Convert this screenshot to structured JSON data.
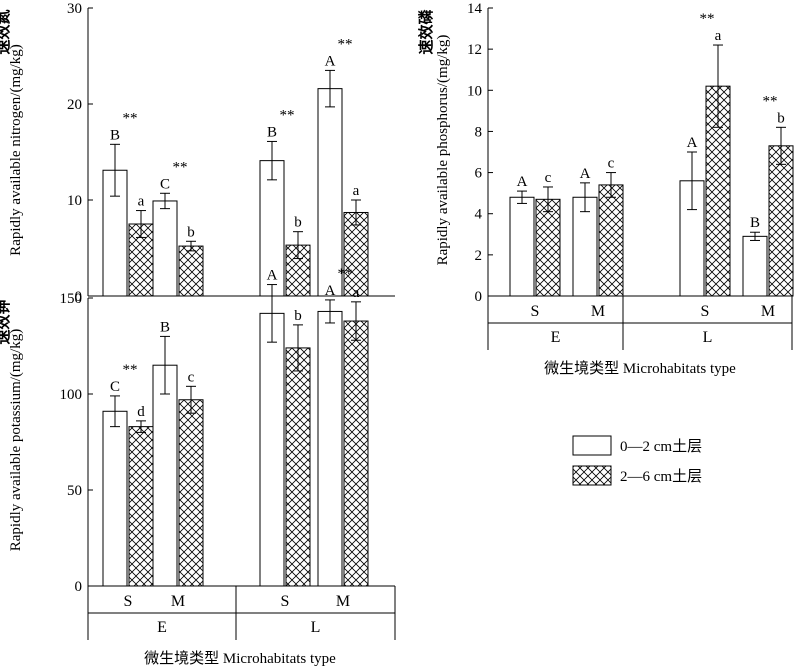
{
  "chart_data": [
    {
      "id": "nitrogen",
      "type": "bar",
      "ylabel_cn": "速效氮",
      "ylabel": "Rapidly available nitrogen/(mg/kg)",
      "ylim": [
        0,
        30
      ],
      "yticks": [
        0,
        10,
        20,
        30
      ],
      "groups": [
        "E",
        "L"
      ],
      "categories": [
        "S",
        "M",
        "S",
        "M"
      ],
      "series": [
        {
          "name": "0—2 cm土层",
          "values": [
            13.1,
            9.9,
            14.1,
            21.6
          ],
          "errors": [
            2.7,
            0.8,
            2.0,
            1.9
          ],
          "letters": [
            "B",
            "C",
            "B",
            "A"
          ]
        },
        {
          "name": "2—6 cm土层",
          "values": [
            7.5,
            5.2,
            5.3,
            8.7
          ],
          "errors": [
            1.4,
            0.5,
            1.4,
            1.3
          ],
          "letters": [
            "a",
            "b",
            "b",
            "a"
          ]
        }
      ],
      "significance": [
        "**",
        "**",
        "**",
        "**"
      ]
    },
    {
      "id": "phosphorus",
      "type": "bar",
      "ylabel_cn": "速效磷",
      "ylabel": "Rapidly available phosphorus/(mg/kg)",
      "ylim": [
        0,
        14
      ],
      "yticks": [
        0,
        2,
        4,
        6,
        8,
        10,
        12,
        14
      ],
      "groups": [
        "E",
        "L"
      ],
      "categories": [
        "S",
        "M",
        "S",
        "M"
      ],
      "series": [
        {
          "name": "0—2 cm土层",
          "values": [
            4.8,
            4.8,
            5.6,
            2.9
          ],
          "errors": [
            0.3,
            0.7,
            1.4,
            0.2
          ],
          "letters": [
            "A",
            "A",
            "A",
            "B"
          ]
        },
        {
          "name": "2—6 cm土层",
          "values": [
            4.7,
            5.4,
            10.2,
            7.3
          ],
          "errors": [
            0.6,
            0.6,
            2.0,
            0.9
          ],
          "letters": [
            "c",
            "c",
            "a",
            "b"
          ]
        }
      ],
      "significance": [
        "",
        "",
        "**",
        "**"
      ],
      "xlabel": "微生境类型 Microhabitats type"
    },
    {
      "id": "potassium",
      "type": "bar",
      "ylabel_cn": "速效钾",
      "ylabel": "Rapidly available potassium/(mg/kg)",
      "ylim": [
        0,
        150
      ],
      "yticks": [
        0,
        50,
        100,
        150
      ],
      "groups": [
        "E",
        "L"
      ],
      "categories": [
        "S",
        "M",
        "S",
        "M"
      ],
      "series": [
        {
          "name": "0—2 cm土层",
          "values": [
            91,
            115,
            142,
            143
          ],
          "errors": [
            8,
            15,
            15,
            6
          ],
          "letters": [
            "C",
            "B",
            "A",
            "A"
          ]
        },
        {
          "name": "2—6 cm土层",
          "values": [
            83,
            97,
            124,
            138
          ],
          "errors": [
            3,
            7,
            12,
            10
          ],
          "letters": [
            "d",
            "c",
            "b",
            "a"
          ]
        }
      ],
      "significance": [
        "**",
        "",
        "",
        "**"
      ],
      "xlabel": "微生境类型 Microhabitats type"
    }
  ],
  "legend": {
    "items": [
      "0—2 cm土层",
      "2—6 cm土层"
    ]
  }
}
